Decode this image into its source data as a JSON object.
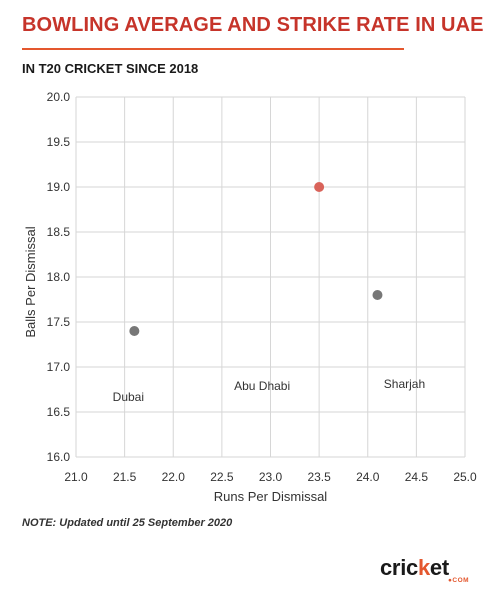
{
  "header": {
    "title": "BOWLING AVERAGE AND STRIKE RATE IN UAE",
    "subtitle": "IN T20 CRICKET SINCE 2018"
  },
  "footer": {
    "note": "NOTE: Updated until 25 September 2020"
  },
  "logo": {
    "text_before": "cric",
    "text_accent": "k",
    "text_after": "et",
    "sub": "●COM"
  },
  "colors": {
    "title": "#c6342a",
    "accent": "#e4572e",
    "point_default": "#777777",
    "point_highlight": "#d9635a",
    "grid": "#d6d6d6"
  },
  "chart_data": {
    "type": "scatter",
    "xlabel": "Runs Per Dismissal",
    "ylabel": "Balls Per Dismissal",
    "xlim": [
      21.0,
      25.0
    ],
    "ylim": [
      16.0,
      20.0
    ],
    "x_ticks": [
      "21.0",
      "21.5",
      "22.0",
      "22.5",
      "23.0",
      "23.5",
      "24.0",
      "24.5",
      "25.0"
    ],
    "y_ticks": [
      "16.0",
      "16.5",
      "17.0",
      "17.5",
      "18.0",
      "18.5",
      "19.0",
      "19.5",
      "20.0"
    ],
    "grid": true,
    "points": [
      {
        "label": "Dubai",
        "x": 21.6,
        "y": 17.4,
        "color": "#777777"
      },
      {
        "label": "Abu Dhabi",
        "x": 23.5,
        "y": 19.0,
        "color": "#d9635a"
      },
      {
        "label": "Sharjah",
        "x": 24.1,
        "y": 17.8,
        "color": "#777777"
      }
    ]
  }
}
